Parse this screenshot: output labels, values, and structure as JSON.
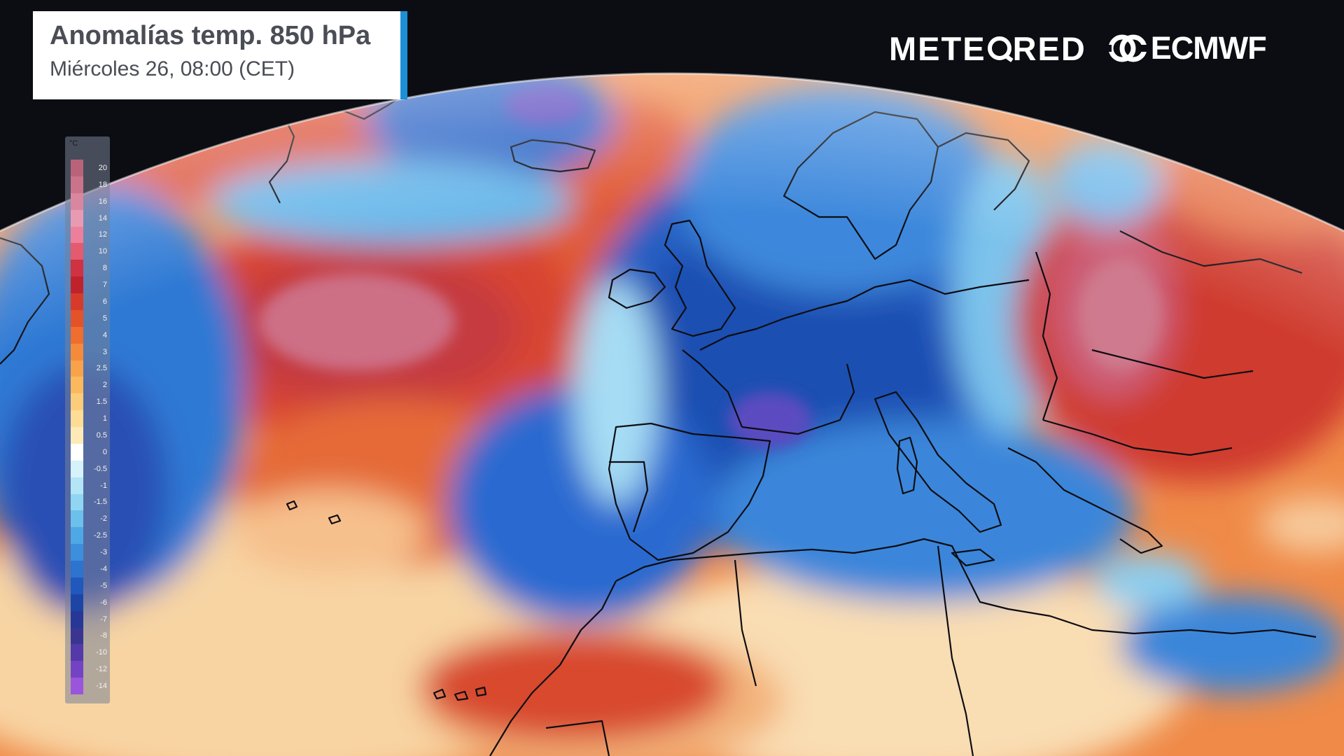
{
  "title": {
    "main": "Anomalías temp. 850 hPa",
    "subtitle": "Miércoles 26, 08:00 (CET)"
  },
  "logos": {
    "meteored": {
      "before": "METE",
      "after": "RED"
    },
    "ecmwf": "ECMWF"
  },
  "legend": {
    "unit": "°C",
    "labels": [
      "20",
      "18",
      "16",
      "14",
      "12",
      "10",
      "8",
      "7",
      "6",
      "5",
      "4",
      "3",
      "2.5",
      "2",
      "1.5",
      "1",
      "0.5",
      "0",
      "-0.5",
      "-1",
      "-1.5",
      "-2",
      "-2.5",
      "-3",
      "-4",
      "-5",
      "-6",
      "-7",
      "-8",
      "-10",
      "-12",
      "-14"
    ],
    "colors": [
      "#b9637a",
      "#c9748a",
      "#d9869f",
      "#e99ab3",
      "#ee7f9b",
      "#e45a6e",
      "#cf3240",
      "#c0222c",
      "#d83a2a",
      "#e4522a",
      "#ef6d2d",
      "#f58a3a",
      "#f8a24a",
      "#fbb95e",
      "#fccd78",
      "#fddc96",
      "#feeab6",
      "#ffffff",
      "#d6f2fb",
      "#b3e5f6",
      "#90d5f1",
      "#6cc0ec",
      "#4ea8e6",
      "#3b8fdc",
      "#2c74ce",
      "#2058bd",
      "#1d45a6",
      "#273796",
      "#3a3591",
      "#5439a8",
      "#7343c4",
      "#9a55dc"
    ]
  },
  "map": {
    "region": "Europe / North Atlantic",
    "palette": {
      "ocean_bg": "#e6703a",
      "warm_light": "#f7c99a",
      "warm_mid": "#e6703a",
      "warm_strong": "#c9352d",
      "warm_max": "#cd6f86",
      "cold_light": "#7fc6ee",
      "cold_mid": "#3a87d8",
      "cold_strong": "#1d4fb5",
      "cold_max": "#5b4cc0",
      "coastline": "#0d0d12"
    }
  }
}
